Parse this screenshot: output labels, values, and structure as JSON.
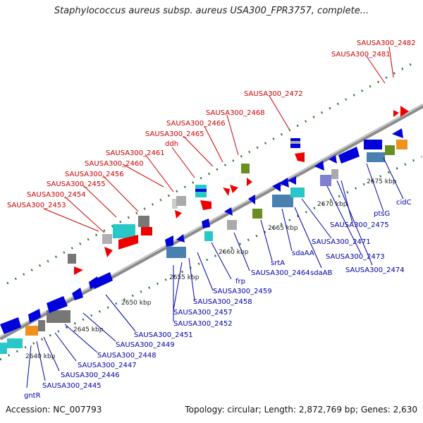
{
  "title": "Staphylococcus aureus subsp. aureus USA300_FPR3757, complete...",
  "accession": "Accession: NC_007793",
  "topology": "Topology: circular; Length: 2,872,769 bp; Genes: 2,630",
  "colors": {
    "red_label": "#cc0000",
    "blue_label": "#0000aa",
    "backbone": "#8c8c8c",
    "dots": "#2e7d32",
    "gene_blue": "#0000dd",
    "gene_red": "#ee0000",
    "gene_cyan": "#28c8c8",
    "gene_gray": "#777777",
    "gene_olive": "#6b8e23",
    "gene_orange": "#f0901e",
    "gene_slate": "#4a80b0",
    "gene_lavender": "#8080d0"
  },
  "kbp_ticks": [
    {
      "label": "2640 kbp"
    },
    {
      "label": "2645 kbp"
    },
    {
      "label": "2650 kbp"
    },
    {
      "label": "2655 kbp"
    },
    {
      "label": "2660 kbp"
    },
    {
      "label": "2665 kbp"
    },
    {
      "label": "2670 kbp"
    },
    {
      "label": "2675 kbp"
    }
  ],
  "top_labels": [
    {
      "text": "SAUSA300_2453"
    },
    {
      "text": "SAUSA300_2454"
    },
    {
      "text": "SAUSA300_2455"
    },
    {
      "text": "SAUSA300_2456"
    },
    {
      "text": "SAUSA300_2460"
    },
    {
      "text": "SAUSA300_2461"
    },
    {
      "text": "ddh"
    },
    {
      "text": "SAUSA300_2465"
    },
    {
      "text": "SAUSA300_2466"
    },
    {
      "text": "SAUSA300_2468"
    },
    {
      "text": "SAUSA300_2472"
    },
    {
      "text": "SAUSA300_2481"
    },
    {
      "text": "SAUSA300_2482"
    }
  ],
  "bottom_labels": [
    {
      "text": "gntR"
    },
    {
      "text": "SAUSA300_2445"
    },
    {
      "text": "SAUSA300_2446"
    },
    {
      "text": "SAUSA300_2447"
    },
    {
      "text": "SAUSA300_2448"
    },
    {
      "text": "SAUSA300_2449"
    },
    {
      "text": "SAUSA300_2451"
    },
    {
      "text": "SAUSA300_2452"
    },
    {
      "text": "SAUSA300_2457"
    },
    {
      "text": "SAUSA300_2458"
    },
    {
      "text": "SAUSA300_2459"
    },
    {
      "text": "frp"
    },
    {
      "text": "SAUSA300_2464"
    },
    {
      "text": "srtA"
    },
    {
      "text": "sdaAA"
    },
    {
      "text": "sdaAB"
    },
    {
      "text": "SAUSA300_2471"
    },
    {
      "text": "SAUSA300_2473"
    },
    {
      "text": "SAUSA300_2474"
    },
    {
      "text": "SAUSA300_2475"
    },
    {
      "text": "ptsG"
    },
    {
      "text": "cidC"
    }
  ]
}
